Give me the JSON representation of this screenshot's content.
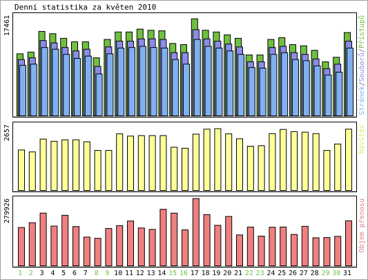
{
  "title": "Denní statistika za květen 2010",
  "chart_data": [
    {
      "type": "bar",
      "label_right_parts": [
        {
          "text": "Stránek",
          "color": "#80b0f0"
        },
        {
          "text": "/",
          "color": "#606060"
        },
        {
          "text": "Souborů",
          "color": "#8c8ce8"
        },
        {
          "text": "/",
          "color": "#606060"
        },
        {
          "text": "Přístupů",
          "color": "#70c040"
        }
      ],
      "ymax_label": "17461",
      "ylim": [
        0,
        17461
      ],
      "categories": [
        "1",
        "2",
        "3",
        "4",
        "5",
        "6",
        "7",
        "8",
        "9",
        "10",
        "11",
        "12",
        "13",
        "14",
        "15",
        "16",
        "17",
        "18",
        "19",
        "20",
        "21",
        "22",
        "23",
        "24",
        "25",
        "26",
        "27",
        "28",
        "29",
        "30",
        "31"
      ],
      "series": [
        {
          "name": "Přístupů",
          "color": "#70c040",
          "values": [
            10800,
            11100,
            14700,
            14300,
            13500,
            12900,
            12900,
            10100,
            13300,
            14600,
            14600,
            15100,
            14900,
            14800,
            12600,
            12400,
            16900,
            14900,
            14600,
            14100,
            13500,
            10600,
            10600,
            13300,
            13600,
            12400,
            12200,
            11400,
            9400,
            10200,
            14500
          ]
        },
        {
          "name": "Souborů",
          "color": "#8c8ce8",
          "values": [
            9800,
            10100,
            13100,
            12700,
            11900,
            11300,
            11600,
            8600,
            12000,
            13000,
            13000,
            13400,
            13400,
            13300,
            11000,
            11000,
            15000,
            13400,
            13000,
            12500,
            12000,
            9400,
            9400,
            11900,
            12100,
            11000,
            10700,
            9900,
            8200,
            9000,
            13000
          ]
        },
        {
          "name": "Stránek",
          "color": "#80b0f0",
          "values": [
            8800,
            9000,
            11900,
            11600,
            10700,
            10000,
            10400,
            7300,
            10800,
            11800,
            11900,
            12100,
            11900,
            11800,
            9800,
            9000,
            13300,
            12100,
            11800,
            11300,
            10700,
            8400,
            8300,
            10700,
            11000,
            9800,
            9600,
            8700,
            7100,
            7600,
            11800
          ]
        }
      ]
    },
    {
      "type": "bar",
      "label_right_parts": [
        {
          "text": "Návštěv",
          "color": "#e4e470"
        }
      ],
      "ymax_label": "2657",
      "ylim": [
        0,
        2657
      ],
      "categories": [
        "1",
        "2",
        "3",
        "4",
        "5",
        "6",
        "7",
        "8",
        "9",
        "10",
        "11",
        "12",
        "13",
        "14",
        "15",
        "16",
        "17",
        "18",
        "19",
        "20",
        "21",
        "22",
        "23",
        "24",
        "25",
        "26",
        "27",
        "28",
        "29",
        "30",
        "31"
      ],
      "series": [
        {
          "name": "Návštěv",
          "color": "#ffff99",
          "values": [
            1640,
            1560,
            2080,
            1990,
            2050,
            2050,
            1970,
            1620,
            1620,
            2290,
            2200,
            2220,
            2220,
            2220,
            1750,
            1710,
            2280,
            2480,
            2500,
            2290,
            2090,
            1790,
            1810,
            2300,
            2470,
            2380,
            2360,
            2300,
            1620,
            1880,
            2480
          ]
        }
      ]
    },
    {
      "type": "bar",
      "label_right_parts": [
        {
          "text": "Objem přenosu",
          "color": "#e08080"
        }
      ],
      "ymax_label": "279926",
      "ylim": [
        0,
        279926
      ],
      "categories": [
        "1",
        "2",
        "3",
        "4",
        "5",
        "6",
        "7",
        "8",
        "9",
        "10",
        "11",
        "12",
        "13",
        "14",
        "15",
        "16",
        "17",
        "18",
        "19",
        "20",
        "21",
        "22",
        "23",
        "24",
        "25",
        "26",
        "27",
        "28",
        "29",
        "30",
        "31"
      ],
      "series": [
        {
          "name": "Objem přenosu",
          "color": "#f08080",
          "values": [
            160000,
            180000,
            220000,
            166000,
            211000,
            164000,
            120000,
            115000,
            156000,
            168000,
            187000,
            158000,
            152000,
            236000,
            220000,
            150000,
            281000,
            214000,
            169000,
            206000,
            129000,
            162000,
            124000,
            161000,
            162000,
            131000,
            165000,
            117000,
            118000,
            123000,
            188000
          ]
        }
      ]
    }
  ],
  "day_colors": {
    "weekday": "#000000",
    "weekend": "#70c040",
    "weekend_days": [
      "1",
      "2",
      "8",
      "9",
      "15",
      "16",
      "22",
      "23",
      "29",
      "30"
    ]
  }
}
